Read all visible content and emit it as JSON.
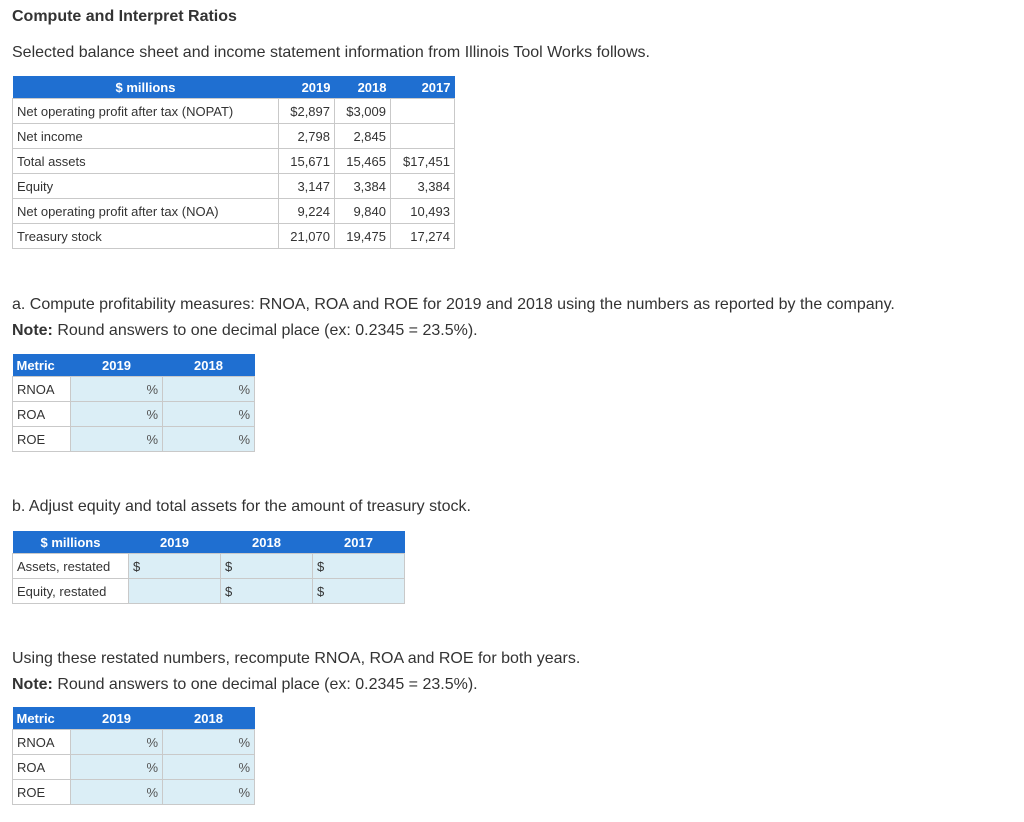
{
  "title": "Compute and Interpret Ratios",
  "intro": "Selected balance sheet and income statement information from Illinois Tool Works follows.",
  "data_table": {
    "headers": [
      "$ millions",
      "2019",
      "2018",
      "2017"
    ],
    "rows": [
      {
        "label": "Net operating profit after tax (NOPAT)",
        "v2019": "$2,897",
        "v2018": "$3,009",
        "v2017": ""
      },
      {
        "label": "Net income",
        "v2019": "2,798",
        "v2018": "2,845",
        "v2017": ""
      },
      {
        "label": "Total assets",
        "v2019": "15,671",
        "v2018": "15,465",
        "v2017": "$17,451"
      },
      {
        "label": "Equity",
        "v2019": "3,147",
        "v2018": "3,384",
        "v2017": "3,384"
      },
      {
        "label": "Net operating profit after tax (NOA)",
        "v2019": "9,224",
        "v2018": "9,840",
        "v2017": "10,493"
      },
      {
        "label": "Treasury stock",
        "v2019": "21,070",
        "v2018": "19,475",
        "v2017": "17,274"
      }
    ]
  },
  "part_a": {
    "text": "a. Compute profitability measures: RNOA, ROA and ROE for 2019 and 2018 using the numbers as reported by the company.",
    "note_label": "Note:",
    "note_text": " Round answers to one decimal place (ex: 0.2345 = 23.5%)."
  },
  "metrics_table_a": {
    "headers": [
      "Metric",
      "2019",
      "2018"
    ],
    "rows": [
      "RNOA",
      "ROA",
      "ROE"
    ],
    "unit": "%"
  },
  "part_b": {
    "text": "b. Adjust equity and total assets for the amount of treasury stock."
  },
  "restated_table": {
    "headers": [
      "$ millions",
      "2019",
      "2018",
      "2017"
    ],
    "rows": [
      "Assets, restated",
      "Equity, restated"
    ],
    "unit": "$"
  },
  "part_c": {
    "text": "Using these restated numbers, recompute RNOA, ROA and ROE for both years.",
    "note_label": "Note:",
    "note_text": " Round answers to one decimal place (ex: 0.2345 = 23.5%)."
  },
  "metrics_table_c": {
    "headers": [
      "Metric",
      "2019",
      "2018"
    ],
    "rows": [
      "RNOA",
      "ROA",
      "ROE"
    ],
    "unit": "%"
  }
}
